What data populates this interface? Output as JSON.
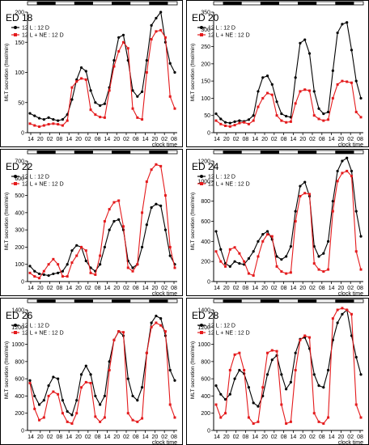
{
  "chart_data": [
    {
      "type": "line",
      "title": "ED 18",
      "ylabel": "MLT secretion (fmol/min)",
      "xlabel": "clock time",
      "ylim": [
        0,
        200
      ],
      "yticks": [
        0,
        50,
        100,
        150,
        200
      ],
      "xticks": [
        "14",
        "20",
        "02",
        "08",
        "14",
        "20",
        "02",
        "08",
        "14",
        "20",
        "02",
        "08",
        "14",
        "20",
        "02",
        "08"
      ],
      "legend": "top-left",
      "series": [
        {
          "name": "12 L : 12 D",
          "color": "#000000",
          "values": [
            32,
            28,
            24,
            22,
            25,
            22,
            20,
            22,
            30,
            55,
            88,
            108,
            102,
            70,
            50,
            45,
            48,
            75,
            120,
            158,
            162,
            120,
            70,
            60,
            68,
            120,
            178,
            190,
            200,
            150,
            115,
            100
          ]
        },
        {
          "name": "12 L + NE : 12 D",
          "color": "#e41a1c",
          "values": [
            15,
            12,
            10,
            12,
            14,
            15,
            14,
            12,
            20,
            75,
            85,
            90,
            88,
            38,
            30,
            26,
            25,
            70,
            110,
            135,
            150,
            140,
            40,
            25,
            22,
            100,
            155,
            168,
            170,
            158,
            60,
            40
          ]
        }
      ]
    },
    {
      "type": "line",
      "title": "ED 20",
      "ylabel": "MLT secretion (fmol/min)",
      "xlabel": "clock time",
      "ylim": [
        0,
        350
      ],
      "yticks": [
        0,
        50,
        100,
        150,
        200,
        250,
        300,
        350
      ],
      "xticks": [
        "14",
        "20",
        "02",
        "08",
        "14",
        "20",
        "02",
        "08",
        "14",
        "20",
        "02",
        "08",
        "14",
        "20",
        "02",
        "08"
      ],
      "legend": "top-left",
      "series": [
        {
          "name": "12 L : 12 D",
          "color": "#000000",
          "values": [
            55,
            40,
            30,
            28,
            32,
            35,
            33,
            38,
            50,
            120,
            160,
            165,
            140,
            90,
            55,
            48,
            45,
            160,
            260,
            270,
            230,
            120,
            70,
            55,
            60,
            180,
            290,
            315,
            320,
            240,
            150,
            100
          ]
        },
        {
          "name": "12 L + NE : 12 D",
          "color": "#e41a1c",
          "values": [
            35,
            25,
            20,
            18,
            22,
            28,
            30,
            25,
            35,
            75,
            100,
            115,
            110,
            50,
            35,
            30,
            32,
            85,
            120,
            125,
            122,
            50,
            40,
            35,
            38,
            100,
            140,
            150,
            148,
            145,
            60,
            45
          ]
        }
      ]
    },
    {
      "type": "line",
      "title": "ED 22",
      "ylabel": "MLT secretion (fmol/min)",
      "xlabel": "clock time",
      "ylim": [
        0,
        700
      ],
      "yticks": [
        0,
        100,
        200,
        300,
        400,
        500,
        600,
        700
      ],
      "xticks": [
        "14",
        "20",
        "02",
        "08",
        "14",
        "20",
        "02",
        "08",
        "14",
        "20",
        "02",
        "08",
        "14",
        "20",
        "02",
        "08"
      ],
      "legend": "top-left",
      "series": [
        {
          "name": "12 L : 12 D",
          "color": "#000000",
          "values": [
            90,
            60,
            45,
            40,
            35,
            45,
            50,
            60,
            100,
            180,
            210,
            200,
            120,
            80,
            60,
            100,
            200,
            300,
            350,
            360,
            300,
            120,
            80,
            100,
            200,
            330,
            430,
            450,
            440,
            300,
            150,
            100
          ]
        },
        {
          "name": "12 L + NE : 12 D",
          "color": "#e41a1c",
          "values": [
            50,
            30,
            20,
            60,
            100,
            130,
            100,
            30,
            30,
            110,
            150,
            200,
            180,
            50,
            40,
            150,
            350,
            420,
            460,
            470,
            320,
            80,
            60,
            100,
            400,
            580,
            650,
            680,
            670,
            500,
            200,
            80
          ]
        }
      ]
    },
    {
      "type": "line",
      "title": "ED 24",
      "ylabel": "MLT secretion (fmol/min)",
      "xlabel": "clock time",
      "ylim": [
        0,
        1200
      ],
      "yticks": [
        0,
        200,
        400,
        600,
        800,
        1000,
        1200
      ],
      "xticks": [
        "14",
        "20",
        "02",
        "08",
        "14",
        "20",
        "02",
        "08",
        "14",
        "20",
        "02",
        "08",
        "14",
        "20",
        "02",
        "08"
      ],
      "legend": "top-left",
      "series": [
        {
          "name": "12 L : 12 D",
          "color": "#000000",
          "values": [
            500,
            320,
            180,
            150,
            200,
            180,
            170,
            230,
            300,
            400,
            470,
            500,
            420,
            250,
            220,
            250,
            350,
            700,
            950,
            990,
            850,
            350,
            250,
            280,
            400,
            800,
            1100,
            1200,
            1230,
            1100,
            700,
            450
          ]
        },
        {
          "name": "12 L + NE : 12 D",
          "color": "#e41a1c",
          "values": [
            300,
            200,
            150,
            320,
            340,
            280,
            200,
            80,
            60,
            250,
            400,
            470,
            450,
            150,
            100,
            80,
            90,
            600,
            850,
            880,
            870,
            180,
            120,
            100,
            120,
            700,
            1000,
            1080,
            1100,
            1050,
            300,
            120
          ]
        }
      ]
    },
    {
      "type": "line",
      "title": "ED 26",
      "ylabel": "MLT secretion (fmol/min)",
      "xlabel": "clock time",
      "ylim": [
        0,
        1400
      ],
      "yticks": [
        0,
        200,
        400,
        600,
        800,
        1000,
        1200,
        1400
      ],
      "xticks": [
        "14",
        "20",
        "02",
        "08",
        "14",
        "20",
        "02",
        "08",
        "14",
        "20",
        "02",
        "08",
        "14",
        "20",
        "02",
        "08"
      ],
      "legend": "top-left",
      "series": [
        {
          "name": "12 L : 12 D",
          "color": "#000000",
          "values": [
            580,
            400,
            300,
            350,
            520,
            620,
            600,
            350,
            220,
            180,
            350,
            650,
            750,
            650,
            400,
            300,
            400,
            800,
            1050,
            1150,
            1100,
            600,
            400,
            350,
            500,
            900,
            1250,
            1330,
            1300,
            1100,
            700,
            580
          ]
        },
        {
          "name": "12 L + NE : 12 D",
          "color": "#e41a1c",
          "values": [
            550,
            250,
            120,
            150,
            400,
            450,
            420,
            200,
            100,
            80,
            200,
            500,
            560,
            550,
            160,
            100,
            150,
            700,
            1050,
            1150,
            1140,
            200,
            120,
            100,
            140,
            900,
            1200,
            1250,
            1220,
            1150,
            300,
            150
          ]
        }
      ]
    },
    {
      "type": "line",
      "title": "ED 28",
      "ylabel": "MLT secretion (fmol/min)",
      "xlabel": "clock time",
      "ylim": [
        0,
        1400
      ],
      "yticks": [
        0,
        200,
        400,
        600,
        800,
        1000,
        1200,
        1400
      ],
      "xticks": [
        "14",
        "20",
        "02",
        "08",
        "14",
        "20",
        "02",
        "08",
        "14",
        "20",
        "02",
        "08",
        "14",
        "20",
        "02",
        "08"
      ],
      "legend": "top-left",
      "series": [
        {
          "name": "12 L : 12 D",
          "color": "#000000",
          "values": [
            520,
            420,
            360,
            420,
            600,
            700,
            660,
            500,
            320,
            280,
            400,
            650,
            820,
            870,
            650,
            480,
            560,
            900,
            1060,
            1080,
            950,
            650,
            520,
            500,
            700,
            1050,
            1250,
            1350,
            1400,
            1100,
            850,
            650
          ]
        },
        {
          "name": "12 L + NE : 12 D",
          "color": "#e41a1c",
          "values": [
            300,
            150,
            200,
            700,
            880,
            900,
            700,
            150,
            80,
            100,
            500,
            900,
            930,
            920,
            300,
            80,
            100,
            700,
            1050,
            1100,
            1080,
            200,
            100,
            80,
            150,
            1300,
            1400,
            1420,
            1400,
            1350,
            300,
            150
          ]
        }
      ]
    }
  ]
}
